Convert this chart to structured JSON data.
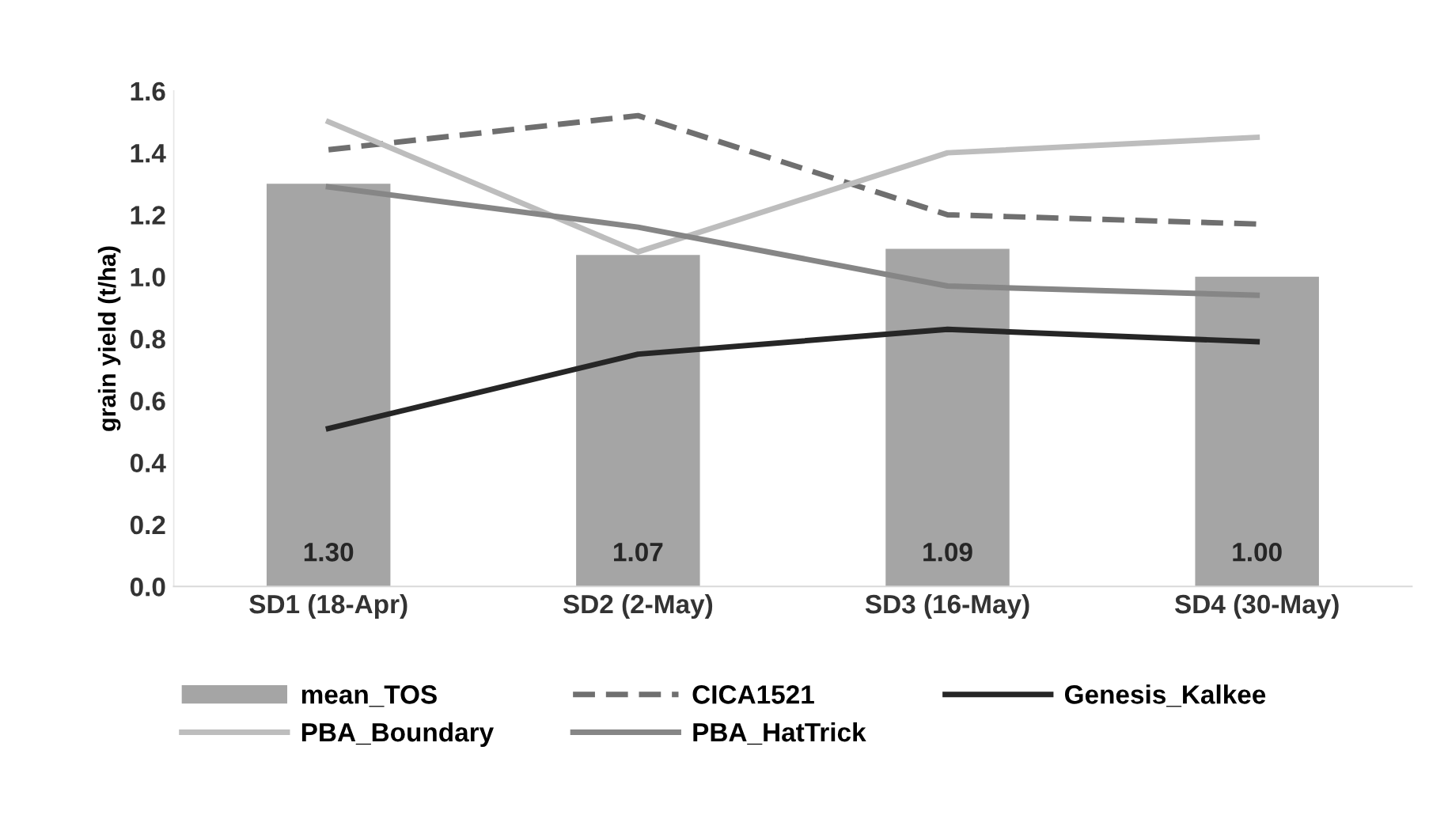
{
  "chart_data": {
    "type": "bar",
    "ylabel": "grain yield (t/ha)",
    "categories": [
      "SD1 (18-Apr)",
      "SD2 (2-May)",
      "SD3 (16-May)",
      "SD4 (30-May)"
    ],
    "series": [
      {
        "name": "mean_TOS",
        "color": "#a5a5a5",
        "values": [
          1.3,
          1.07,
          1.09,
          1.0
        ],
        "value_labels": [
          "1.30",
          "1.07",
          "1.09",
          "1.00"
        ]
      },
      {
        "name": "CICA1521",
        "type": "line",
        "line_style": "dashed",
        "color": "#6f6f6f",
        "values": [
          1.41,
          1.52,
          1.2,
          1.17
        ]
      },
      {
        "name": "Genesis_Kalkee",
        "type": "line",
        "line_style": "solid",
        "color": "#262626",
        "values": [
          0.51,
          0.75,
          0.83,
          0.79
        ]
      },
      {
        "name": "PBA_Boundary",
        "type": "line",
        "line_style": "solid",
        "color": "#bdbdbd",
        "values": [
          1.5,
          1.08,
          1.4,
          1.45
        ]
      },
      {
        "name": "PBA_HatTrick",
        "type": "line",
        "line_style": "solid",
        "color": "#868686",
        "values": [
          1.29,
          1.16,
          0.97,
          0.94
        ]
      }
    ],
    "ylim": [
      0,
      1.6
    ],
    "yticks": [
      "0.0",
      "0.2",
      "0.4",
      "0.6",
      "0.8",
      "1.0",
      "1.2",
      "1.4",
      "1.6"
    ],
    "grid": false,
    "legend": "bottom"
  }
}
